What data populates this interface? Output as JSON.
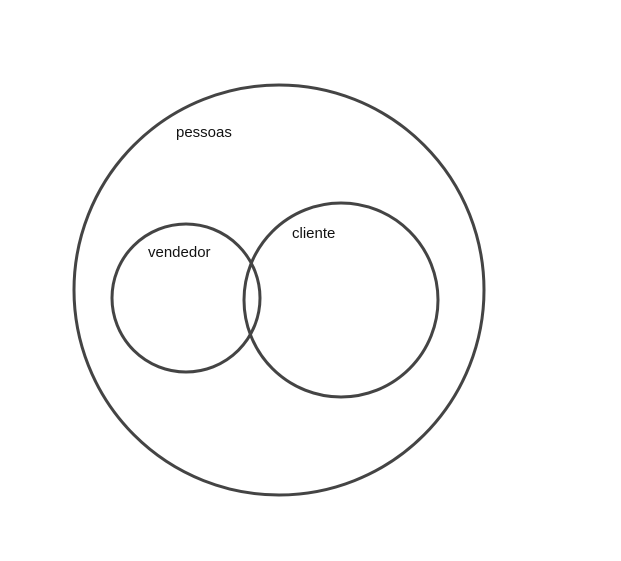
{
  "diagram": {
    "type": "venn",
    "sets": {
      "pessoas": {
        "label": "pessoas"
      },
      "vendedor": {
        "label": "vendedor"
      },
      "cliente": {
        "label": "cliente"
      }
    },
    "relations": [
      {
        "type": "contains",
        "outer": "pessoas",
        "inner": "vendedor"
      },
      {
        "type": "contains",
        "outer": "pessoas",
        "inner": "cliente"
      },
      {
        "type": "overlaps",
        "a": "vendedor",
        "b": "cliente"
      }
    ],
    "stroke_color": "#444444",
    "background": "#ffffff"
  }
}
